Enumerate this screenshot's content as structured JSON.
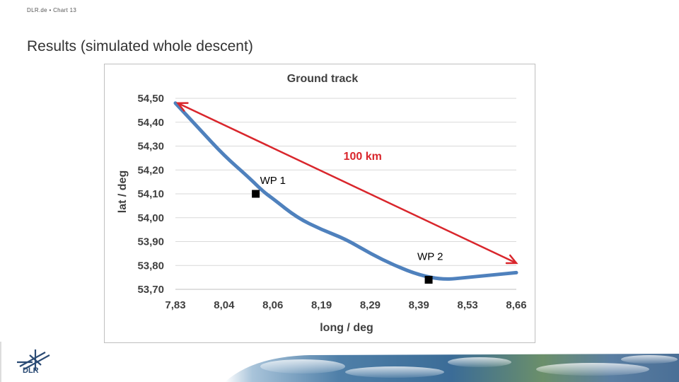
{
  "slide": {
    "header": "DLR.de  •  Chart 13",
    "title": "Results (simulated whole descent)",
    "logo_text": "DLR"
  },
  "colors": {
    "track": "#4f81bd",
    "arrow": "#d9262c",
    "grid": "#d9d9d9",
    "axis_text": "#404040",
    "marker": "#000000"
  },
  "chart_data": {
    "type": "line",
    "title": "Ground track",
    "xlabel": "long / deg",
    "ylabel": "lat / deg",
    "x_tick_labels": [
      "7,83",
      "8,04",
      "8,06",
      "8,19",
      "8,29",
      "8,39",
      "8,53",
      "8,66"
    ],
    "y_tick_labels": [
      "54,50",
      "54,40",
      "54,30",
      "54,20",
      "54,10",
      "54,00",
      "53,90",
      "53,80",
      "53,70"
    ],
    "ylim": [
      53.7,
      54.5
    ],
    "x_index_range": [
      0,
      7
    ],
    "series": [
      {
        "name": "Ground track",
        "points": [
          {
            "x": 0.0,
            "y": 54.48
          },
          {
            "x": 0.5,
            "y": 54.37
          },
          {
            "x": 1.0,
            "y": 54.26
          },
          {
            "x": 1.5,
            "y": 54.17
          },
          {
            "x": 1.8,
            "y": 54.11
          },
          {
            "x": 2.0,
            "y": 54.08
          },
          {
            "x": 2.5,
            "y": 54.0
          },
          {
            "x": 3.0,
            "y": 53.95
          },
          {
            "x": 3.5,
            "y": 53.91
          },
          {
            "x": 4.0,
            "y": 53.85
          },
          {
            "x": 4.5,
            "y": 53.8
          },
          {
            "x": 5.0,
            "y": 53.76
          },
          {
            "x": 5.5,
            "y": 53.74
          },
          {
            "x": 6.0,
            "y": 53.75
          },
          {
            "x": 6.5,
            "y": 53.76
          },
          {
            "x": 7.0,
            "y": 53.77
          }
        ]
      }
    ],
    "waypoints": [
      {
        "label": "WP 1",
        "x": 1.65,
        "y": 54.1
      },
      {
        "label": "WP 2",
        "x": 5.2,
        "y": 53.74
      }
    ],
    "distance_arrow": {
      "label": "100 km",
      "from": {
        "x": 0.05,
        "y": 54.48
      },
      "to": {
        "x": 7.0,
        "y": 53.81
      }
    }
  }
}
